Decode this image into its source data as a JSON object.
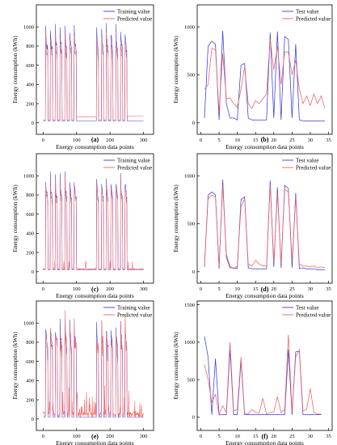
{
  "figure": {
    "background": "#ffffff",
    "train_color": "#3b3bdc",
    "test_color": "#3b3bdc",
    "pred_color": "#f06060"
  },
  "chart_data": [
    {
      "panel": "(a)",
      "type": "line",
      "xlabel": "Energy consumption data points",
      "ylabel": "Energy consumption (kWh)",
      "xticks": [
        0,
        100,
        200,
        300
      ],
      "yticks": [
        0,
        200,
        400,
        600,
        800,
        1000
      ],
      "xlim": [
        -20,
        330
      ],
      "ylim": [
        -120,
        1230
      ],
      "legend_position": "top-right",
      "generator": "train",
      "pattern": "clean",
      "series": [
        {
          "name": "Training value",
          "role": "actual"
        },
        {
          "name": "Predicted value",
          "role": "predicted"
        }
      ]
    },
    {
      "panel": "(b)",
      "type": "line",
      "xlabel": "Energy consumption data points",
      "ylabel": "Energy consumption (kWh)",
      "xticks": [
        0,
        5,
        10,
        15,
        20,
        25,
        30,
        35
      ],
      "yticks": [
        0,
        500,
        1000
      ],
      "xlim": [
        -1,
        36
      ],
      "ylim": [
        -120,
        1230
      ],
      "legend_position": "top-right",
      "x": [
        1,
        2,
        3,
        4,
        5,
        6,
        7,
        8,
        9,
        10,
        11,
        12,
        13,
        14,
        15,
        16,
        17,
        18,
        19,
        20,
        21,
        22,
        23,
        24,
        25,
        26,
        27,
        28,
        29,
        30,
        31,
        32,
        33,
        34
      ],
      "series": [
        {
          "name": "Test value",
          "role": "actual",
          "values": [
            50,
            800,
            850,
            820,
            30,
            960,
            200,
            50,
            50,
            30,
            600,
            620,
            50,
            30,
            30,
            30,
            30,
            30,
            940,
            50,
            950,
            30,
            900,
            870,
            50,
            820,
            30,
            20,
            20,
            20,
            20,
            20,
            20,
            20
          ]
        },
        {
          "name": "Predicted value",
          "role": "predicted",
          "values": [
            350,
            400,
            780,
            760,
            120,
            720,
            250,
            260,
            200,
            160,
            350,
            580,
            200,
            150,
            230,
            200,
            250,
            300,
            880,
            550,
            800,
            400,
            740,
            740,
            500,
            650,
            350,
            200,
            280,
            180,
            300,
            200,
            280,
            150
          ]
        }
      ]
    },
    {
      "panel": "(c)",
      "type": "line",
      "xlabel": "Energy consumption data points",
      "ylabel": "Energy consumption (kWh)",
      "xticks": [
        0,
        100,
        200,
        300
      ],
      "yticks": [
        0,
        200,
        400,
        600,
        800,
        1000
      ],
      "xlim": [
        -20,
        330
      ],
      "ylim": [
        -120,
        1230
      ],
      "legend_position": "top-right",
      "generator": "train",
      "pattern": "good",
      "series": [
        {
          "name": "Training value",
          "role": "actual"
        },
        {
          "name": "Predicted value",
          "role": "predicted"
        }
      ]
    },
    {
      "panel": "(d)",
      "type": "line",
      "xlabel": "Energy consumption data points",
      "ylabel": "Energy consumption (kWh)",
      "xticks": [
        0,
        5,
        10,
        15,
        20,
        25,
        30,
        35
      ],
      "yticks": [
        0,
        500,
        1000
      ],
      "xlim": [
        -1,
        36
      ],
      "ylim": [
        -120,
        1230
      ],
      "legend_position": "top-right",
      "x": [
        1,
        2,
        3,
        4,
        5,
        6,
        7,
        8,
        9,
        10,
        11,
        12,
        13,
        14,
        15,
        16,
        17,
        18,
        19,
        20,
        21,
        22,
        23,
        24,
        25,
        26,
        27,
        28,
        29,
        30,
        31,
        32,
        33,
        34
      ],
      "series": [
        {
          "name": "Test value",
          "role": "actual",
          "values": [
            50,
            800,
            830,
            800,
            30,
            960,
            150,
            40,
            40,
            30,
            750,
            780,
            40,
            30,
            30,
            30,
            30,
            30,
            950,
            50,
            880,
            40,
            900,
            870,
            40,
            820,
            30,
            40,
            30,
            30,
            30,
            20,
            20,
            20
          ]
        },
        {
          "name": "Predicted value",
          "role": "predicted",
          "values": [
            80,
            760,
            800,
            780,
            60,
            900,
            180,
            60,
            30,
            60,
            680,
            760,
            80,
            60,
            120,
            80,
            60,
            60,
            900,
            100,
            820,
            80,
            860,
            830,
            100,
            780,
            80,
            60,
            60,
            50,
            60,
            40,
            50,
            40
          ]
        }
      ]
    },
    {
      "panel": "(e)",
      "type": "line",
      "xlabel": "Energy consumption data points",
      "ylabel": "Energy consumption (kWh)",
      "xticks": [
        0,
        100,
        200,
        300
      ],
      "yticks": [
        0,
        200,
        400,
        600,
        800,
        1000
      ],
      "xlim": [
        -20,
        330
      ],
      "ylim": [
        -120,
        1230
      ],
      "legend_position": "top-right",
      "generator": "train",
      "pattern": "noisy",
      "series": [
        {
          "name": "Training value",
          "role": "actual"
        },
        {
          "name": "Predicted value",
          "role": "predicted"
        }
      ]
    },
    {
      "panel": "(f)",
      "type": "line",
      "xlabel": "Energy consumption data points",
      "ylabel": "Energy consumption (kWh)",
      "xticks": [
        0,
        5,
        10,
        15,
        20,
        25,
        30,
        35
      ],
      "yticks": [
        0,
        500,
        1000,
        1500
      ],
      "xlim": [
        -1,
        36
      ],
      "ylim": [
        -180,
        1550
      ],
      "legend_position": "top-right",
      "x": [
        1,
        2,
        3,
        4,
        5,
        6,
        7,
        8,
        9,
        10,
        11,
        12,
        13,
        14,
        15,
        16,
        17,
        18,
        19,
        20,
        21,
        22,
        23,
        24,
        25,
        26,
        27,
        28,
        29,
        30,
        31,
        32,
        33
      ],
      "series": [
        {
          "name": "Test value",
          "role": "actual",
          "values": [
            1080,
            800,
            30,
            780,
            30,
            30,
            30,
            900,
            30,
            30,
            750,
            30,
            30,
            30,
            30,
            30,
            30,
            30,
            30,
            30,
            30,
            30,
            30,
            900,
            30,
            870,
            880,
            30,
            30,
            30,
            30,
            30,
            30
          ]
        },
        {
          "name": "Predicted value",
          "role": "predicted",
          "values": [
            700,
            500,
            200,
            300,
            30,
            150,
            60,
            1000,
            80,
            100,
            800,
            50,
            40,
            100,
            60,
            50,
            250,
            40,
            60,
            70,
            270,
            60,
            100,
            1100,
            70,
            800,
            900,
            80,
            100,
            380,
            60,
            40,
            40
          ]
        }
      ]
    }
  ]
}
